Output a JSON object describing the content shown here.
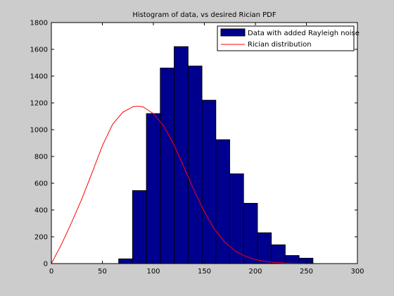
{
  "chart_data": {
    "type": "bar",
    "title": "Histogram of data, vs desired Rician PDF",
    "xlabel": "",
    "ylabel": "",
    "xlim": [
      0,
      300
    ],
    "ylim": [
      0,
      1800
    ],
    "xticks": [
      0,
      50,
      100,
      150,
      200,
      250,
      300
    ],
    "yticks": [
      0,
      200,
      400,
      600,
      800,
      1000,
      1200,
      1400,
      1600,
      1800
    ],
    "grid": false,
    "legend_position": "top-right",
    "series": [
      {
        "name": "Data with added Rayleigh noise",
        "kind": "bar",
        "color": "#00008f",
        "bin_width": 13.6,
        "x": [
          72.8,
          86.4,
          100.0,
          113.6,
          127.2,
          140.8,
          154.4,
          168.0,
          181.6,
          195.2,
          208.8,
          222.4,
          236.0,
          249.6
        ],
        "values": [
          35,
          545,
          1120,
          1460,
          1620,
          1475,
          1220,
          925,
          670,
          450,
          230,
          140,
          60,
          40
        ]
      },
      {
        "name": "Rician distribution",
        "kind": "line",
        "color": "#ff0000",
        "x": [
          0,
          10,
          20,
          30,
          40,
          50,
          60,
          70,
          80,
          85,
          90,
          100,
          110,
          120,
          130,
          140,
          150,
          160,
          170,
          180,
          190,
          200,
          210,
          220,
          230,
          240,
          250,
          260,
          280,
          300
        ],
        "values": [
          0,
          145,
          310,
          485,
          680,
          880,
          1040,
          1130,
          1172,
          1175,
          1170,
          1120,
          1030,
          890,
          720,
          545,
          385,
          255,
          160,
          95,
          55,
          30,
          15,
          8,
          4,
          2,
          1,
          0,
          0,
          0
        ]
      }
    ]
  }
}
